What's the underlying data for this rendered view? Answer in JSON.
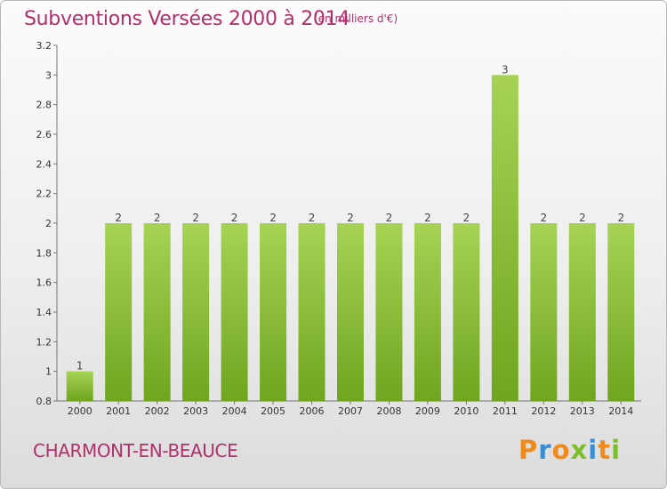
{
  "header": {
    "title": "Subventions Versées 2000 à 2014",
    "unit": "(en milliers d'€)"
  },
  "footer": {
    "town": "CHARMONT-EN-BEAUCE",
    "logo": "Proxiti"
  },
  "colors": {
    "title": "#b0306a",
    "bar_light": "#a6d354",
    "bar_dark": "#6fa51f",
    "logo_orange": "#f08a1c",
    "logo_blue": "#3a8fd4",
    "logo_green": "#7bbd2a"
  },
  "chart_data": {
    "type": "bar",
    "categories": [
      "2000",
      "2001",
      "2002",
      "2003",
      "2004",
      "2005",
      "2006",
      "2007",
      "2008",
      "2009",
      "2010",
      "2011",
      "2012",
      "2013",
      "2014"
    ],
    "values": [
      1,
      2,
      2,
      2,
      2,
      2,
      2,
      2,
      2,
      2,
      2,
      3,
      2,
      2,
      2
    ],
    "data_labels": [
      "1",
      "2",
      "2",
      "2",
      "2",
      "2",
      "2",
      "2",
      "2",
      "2",
      "2",
      "3",
      "2",
      "2",
      "2"
    ],
    "yticks": [
      0.8,
      1,
      1.2,
      1.4,
      1.6,
      1.8,
      2,
      2.2,
      2.4,
      2.6,
      2.8,
      3,
      3.2
    ],
    "ytick_labels": [
      "0.8",
      "1",
      "1.2",
      "1.4",
      "1.6",
      "1.8",
      "2",
      "2.2",
      "2.4",
      "2.6",
      "2.8",
      "3",
      "3.2"
    ],
    "ylim": [
      0.8,
      3.2
    ],
    "grid": false
  }
}
